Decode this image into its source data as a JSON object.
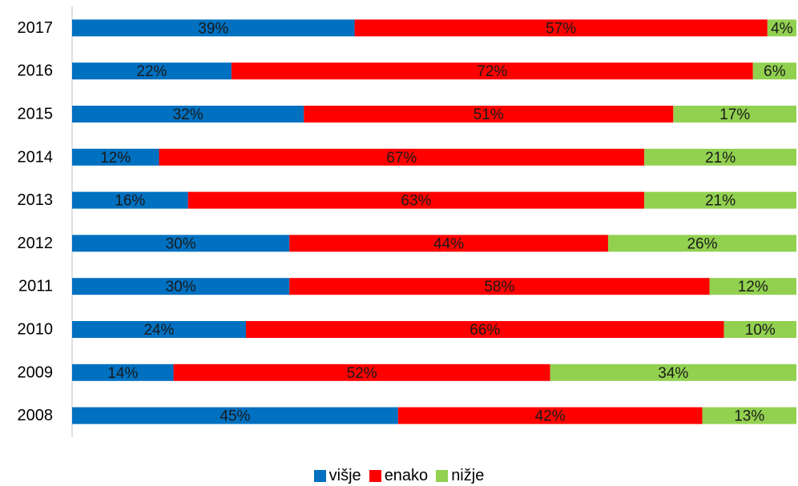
{
  "chart_data": {
    "type": "bar",
    "orientation": "horizontal",
    "stacked": "percent",
    "categories": [
      "2017",
      "2016",
      "2015",
      "2014",
      "2013",
      "2012",
      "2011",
      "2010",
      "2009",
      "2008"
    ],
    "series": [
      {
        "name": "višje",
        "color": "#0070c0",
        "values": [
          39,
          22,
          32,
          12,
          16,
          30,
          30,
          24,
          14,
          45
        ],
        "labels": [
          "39%",
          "22%",
          "32%",
          "12%",
          "16%",
          "30%",
          "30%",
          "24%",
          "14%",
          "45%"
        ]
      },
      {
        "name": "enako",
        "color": "#ff0000",
        "values": [
          57,
          72,
          51,
          67,
          63,
          44,
          58,
          66,
          52,
          42
        ],
        "labels": [
          "57%",
          "72%",
          "51%",
          "67%",
          "63%",
          "44%",
          "58%",
          "66%",
          "52%",
          "42%"
        ]
      },
      {
        "name": "nižje",
        "color": "#92d050",
        "values": [
          4,
          6,
          17,
          21,
          21,
          26,
          12,
          10,
          34,
          13
        ],
        "labels": [
          "4%",
          "6%",
          "17%",
          "21%",
          "21%",
          "26%",
          "12%",
          "10%",
          "34%",
          "13%"
        ]
      }
    ],
    "xlim": [
      0,
      100
    ],
    "grid": false,
    "legend_position": "bottom"
  }
}
